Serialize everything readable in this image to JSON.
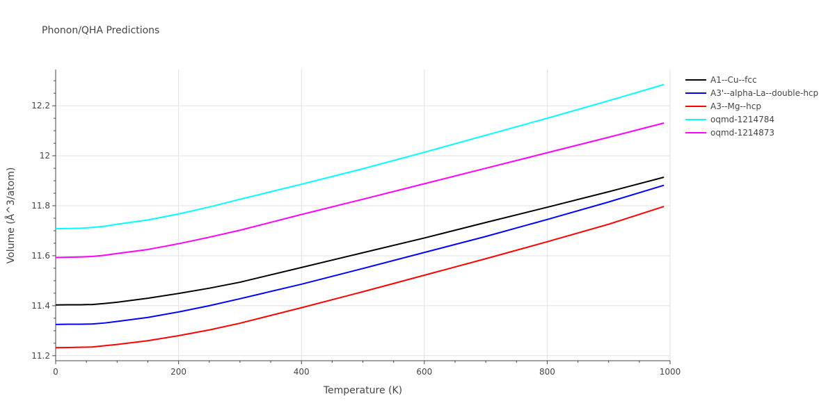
{
  "chart_data": {
    "type": "line",
    "title": "Phonon/QHA Predictions",
    "xlabel": "Temperature (K)",
    "ylabel": "Volume (Å^3/atom)",
    "xlim": [
      0,
      1000
    ],
    "ylim": [
      11.18,
      12.345
    ],
    "xticks": [
      0,
      200,
      400,
      600,
      800,
      1000
    ],
    "xtick_labels": [
      "0",
      "200",
      "400",
      "600",
      "800",
      "1000"
    ],
    "yticks": [
      11.2,
      11.4,
      11.6,
      11.8,
      12.0,
      12.2
    ],
    "ytick_labels": [
      "11.2",
      "11.4",
      "11.6",
      "11.8",
      "12",
      "12.2"
    ],
    "grid": true,
    "legend_position": "top-right",
    "x": [
      0,
      20,
      40,
      60,
      80,
      100,
      150,
      200,
      250,
      300,
      400,
      500,
      600,
      700,
      800,
      900,
      990
    ],
    "series": [
      {
        "name": "A1--Cu--fcc",
        "color": "#000000",
        "values": [
          11.403,
          11.404,
          11.404,
          11.405,
          11.409,
          11.414,
          11.43,
          11.449,
          11.47,
          11.494,
          11.553,
          11.612,
          11.671,
          11.733,
          11.794,
          11.856,
          11.914
        ]
      },
      {
        "name": "A3'--alpha-La--double-hcp",
        "color": "#0000ff",
        "values": [
          11.325,
          11.326,
          11.326,
          11.327,
          11.331,
          11.337,
          11.353,
          11.375,
          11.4,
          11.428,
          11.486,
          11.549,
          11.613,
          11.677,
          11.745,
          11.815,
          11.882
        ]
      },
      {
        "name": "A3--Mg--hcp",
        "color": "#ff0000",
        "values": [
          11.232,
          11.233,
          11.234,
          11.235,
          11.24,
          11.245,
          11.26,
          11.28,
          11.303,
          11.33,
          11.392,
          11.456,
          11.522,
          11.588,
          11.656,
          11.726,
          11.797
        ]
      },
      {
        "name": "oqmd-1214784",
        "color": "#00ffff",
        "values": [
          11.708,
          11.709,
          11.71,
          11.713,
          11.718,
          11.726,
          11.743,
          11.767,
          11.795,
          11.826,
          11.886,
          11.948,
          12.014,
          12.082,
          12.15,
          12.22,
          12.285
        ]
      },
      {
        "name": "oqmd-1214873",
        "color": "#ff00ff",
        "values": [
          11.593,
          11.594,
          11.595,
          11.597,
          11.602,
          11.609,
          11.625,
          11.648,
          11.674,
          11.702,
          11.765,
          11.826,
          11.888,
          11.95,
          12.012,
          12.074,
          12.131
        ]
      }
    ]
  }
}
